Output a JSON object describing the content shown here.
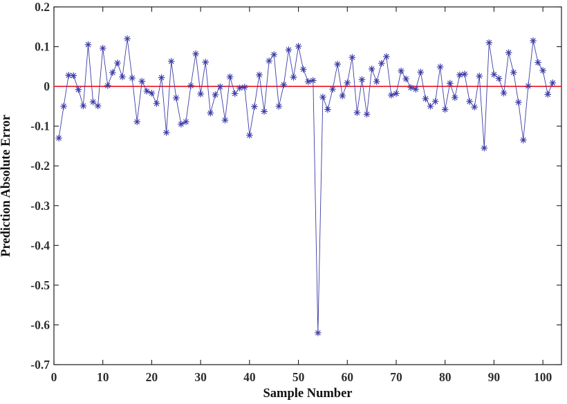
{
  "figure": {
    "background": "#ffffff",
    "frame_color": "#1c1c1c",
    "tick_label_color": "#2e2e2e"
  },
  "chart_data": {
    "type": "line",
    "title": "",
    "xlabel": "Sample Number",
    "ylabel": "Prediction Absolute Error",
    "xlim": [
      0,
      103.8
    ],
    "ylim": [
      -0.7,
      0.2
    ],
    "x_ticks": [
      0,
      10,
      20,
      30,
      40,
      50,
      60,
      70,
      80,
      90,
      100
    ],
    "y_ticks": [
      "0.2",
      "0.1",
      "0",
      "-0.1",
      "-0.2",
      "-0.3",
      "-0.4",
      "-0.5",
      "-0.6",
      "-0.7"
    ],
    "grid": false,
    "legend_position": "none",
    "zero_line": {
      "y": 0,
      "color": "#ee2130"
    },
    "series": [
      {
        "name": "prediction-absolute-error",
        "marker": "asterisk",
        "color": "#3b3ba6",
        "x_start": 1,
        "values": [
          -0.13,
          -0.05,
          0.028,
          0.027,
          -0.008,
          -0.049,
          0.105,
          -0.039,
          -0.049,
          0.096,
          0.002,
          0.035,
          0.059,
          0.024,
          0.12,
          0.021,
          -0.089,
          0.013,
          -0.012,
          -0.017,
          -0.043,
          0.022,
          -0.116,
          0.063,
          -0.029,
          -0.095,
          -0.089,
          0.002,
          0.082,
          -0.019,
          0.061,
          -0.067,
          -0.021,
          -0.001,
          -0.085,
          0.024,
          -0.018,
          -0.004,
          -0.002,
          -0.123,
          -0.051,
          0.029,
          -0.063,
          0.064,
          0.08,
          -0.05,
          0.004,
          0.092,
          0.023,
          0.101,
          0.043,
          0.012,
          0.015,
          -0.62,
          -0.027,
          -0.058,
          -0.007,
          0.056,
          -0.024,
          0.009,
          0.073,
          -0.066,
          0.017,
          -0.07,
          0.044,
          0.012,
          0.058,
          0.075,
          -0.022,
          -0.018,
          0.039,
          0.019,
          -0.003,
          -0.007,
          0.036,
          -0.031,
          -0.05,
          -0.038,
          0.049,
          -0.058,
          0.008,
          -0.028,
          0.029,
          0.031,
          -0.038,
          -0.052,
          0.026,
          -0.155,
          0.11,
          0.03,
          0.02,
          -0.017,
          0.085,
          0.035,
          -0.04,
          -0.135,
          0.001,
          0.115,
          0.06,
          0.04,
          -0.02,
          0.009
        ]
      }
    ]
  }
}
